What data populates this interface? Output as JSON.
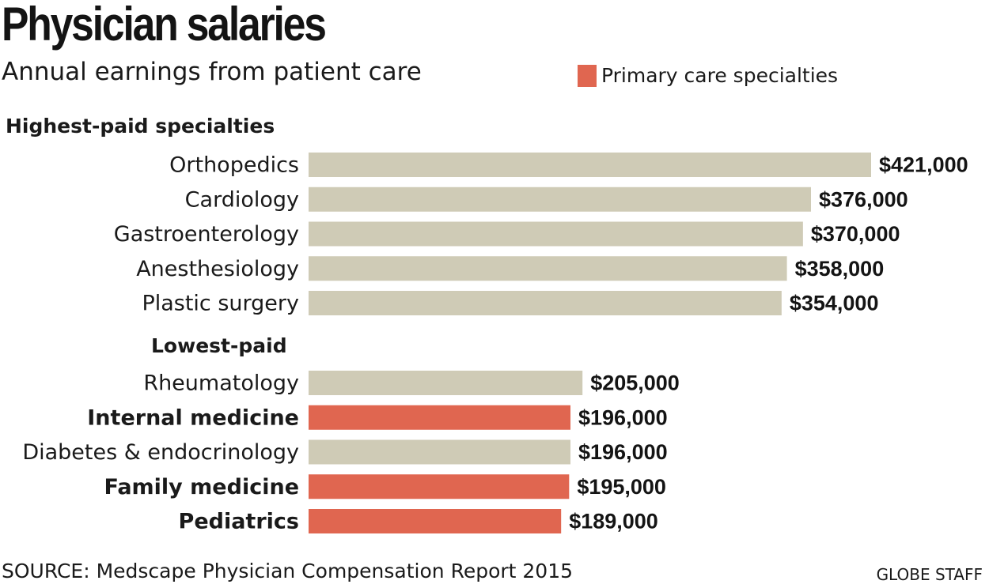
{
  "title": "Physician salaries",
  "subtitle": "Annual earnings from patient care",
  "legend": {
    "label": "Primary care specialties",
    "color": "#e06650"
  },
  "colors": {
    "default_bar": "#cfcbb6",
    "primary_care_bar": "#e06650"
  },
  "footer": {
    "source": "SOURCE: Medscape Physician Compensation Report 2015",
    "credit": "GLOBE STAFF"
  },
  "chart_data": {
    "type": "bar",
    "orientation": "horizontal",
    "groups": [
      {
        "heading": "Highest-paid specialties",
        "items": [
          {
            "category": "Orthopedics",
            "value": 421000,
            "label": "$421,000",
            "primary_care": false
          },
          {
            "category": "Cardiology",
            "value": 376000,
            "label": "$376,000",
            "primary_care": false
          },
          {
            "category": "Gastroenterology",
            "value": 370000,
            "label": "$370,000",
            "primary_care": false
          },
          {
            "category": "Anesthesiology",
            "value": 358000,
            "label": "$358,000",
            "primary_care": false
          },
          {
            "category": "Plastic surgery",
            "value": 354000,
            "label": "$354,000",
            "primary_care": false
          }
        ]
      },
      {
        "heading": "Lowest-paid",
        "items": [
          {
            "category": "Rheumatology",
            "value": 205000,
            "label": "$205,000",
            "primary_care": false
          },
          {
            "category": "Internal medicine",
            "value": 196000,
            "label": "$196,000",
            "primary_care": true
          },
          {
            "category": "Diabetes & endocrinology",
            "value": 196000,
            "label": "$196,000",
            "primary_care": false
          },
          {
            "category": "Family medicine",
            "value": 195000,
            "label": "$195,000",
            "primary_care": true
          },
          {
            "category": "Pediatrics",
            "value": 189000,
            "label": "$189,000",
            "primary_care": true
          }
        ]
      }
    ],
    "xlim": [
      0,
      421000
    ],
    "grid": false,
    "legend_position": "top-right"
  }
}
